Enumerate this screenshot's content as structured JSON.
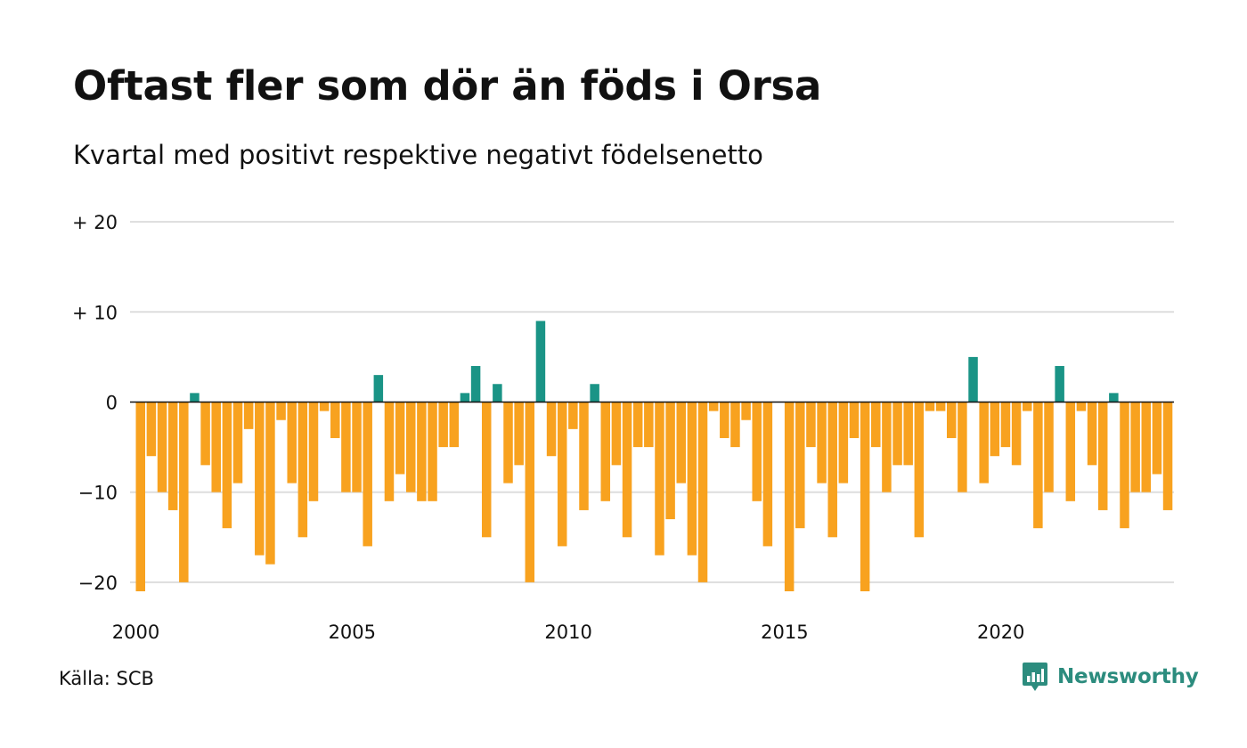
{
  "header": {
    "title": "Oftast fler som dör än föds i Orsa",
    "subtitle": "Kvartal med positivt respektive negativt födelsenetto"
  },
  "footer": {
    "source": "Källa: SCB",
    "brand": "Newsworthy"
  },
  "colors": {
    "positive": "#1a9486",
    "negative": "#f8a21f",
    "grid": "#dddddd",
    "zero_line": "#111111",
    "brand": "#2c8c7e"
  },
  "chart_data": {
    "type": "bar",
    "ylim": [
      -23,
      21
    ],
    "yticks": [
      {
        "value": 20,
        "label": "+ 20"
      },
      {
        "value": 10,
        "label": "+ 10"
      },
      {
        "value": 0,
        "label": "0"
      },
      {
        "value": -10,
        "label": "−10"
      },
      {
        "value": -20,
        "label": "−20"
      }
    ],
    "xticks": [
      {
        "year": 2000,
        "label": "2000"
      },
      {
        "year": 2005,
        "label": "2005"
      },
      {
        "year": 2010,
        "label": "2010"
      },
      {
        "year": 2015,
        "label": "2015"
      },
      {
        "year": 2020,
        "label": "2020"
      }
    ],
    "first_quarter": "2000 Q1",
    "grid": true,
    "values": [
      -21,
      -6,
      -10,
      -12,
      -20,
      1,
      -7,
      -10,
      -14,
      -9,
      -3,
      -17,
      -18,
      -2,
      -9,
      -15,
      -11,
      -1,
      -4,
      -10,
      -10,
      -16,
      3,
      -11,
      -8,
      -10,
      -11,
      -11,
      -5,
      -5,
      1,
      4,
      -15,
      2,
      -9,
      -7,
      -20,
      9,
      -6,
      -16,
      -3,
      -12,
      2,
      -11,
      -7,
      -15,
      -5,
      -5,
      -17,
      -13,
      -9,
      -17,
      -20,
      -1,
      -4,
      -5,
      -2,
      -11,
      -16,
      0,
      -21,
      -14,
      -5,
      -9,
      -15,
      -9,
      -4,
      -21,
      -5,
      -10,
      -7,
      -7,
      -15,
      -1,
      -1,
      -4,
      -10,
      5,
      -9,
      -6,
      -5,
      -7,
      -1,
      -14,
      -10,
      4,
      -11,
      -1,
      -7,
      -12,
      1,
      -14,
      -10,
      -10,
      -8,
      -12
    ]
  }
}
